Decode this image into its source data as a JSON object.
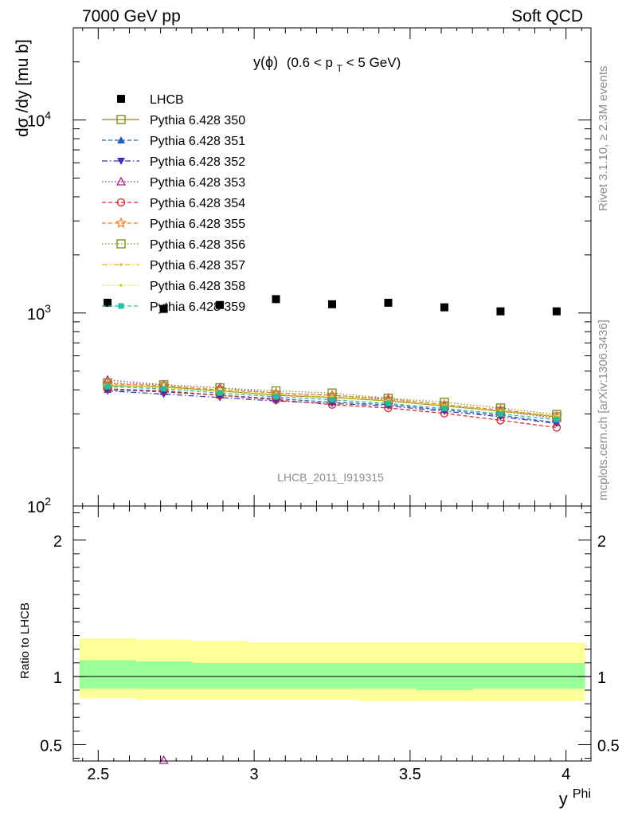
{
  "header": {
    "left": "7000 GeV pp",
    "right": "Soft QCD"
  },
  "plot_title": {
    "main": "y(ϕ)",
    "range_start": "(0.6 < p",
    "range_sub": "T",
    "range_end": " < 5 GeV)"
  },
  "side_labels": {
    "rivet": "Rivet 3.1.10, ≥ 2.3M events",
    "mcplots": "mcplots.cern.ch [arXiv:1306.3436]"
  },
  "analysis_label": "LHCB_2011_I919315",
  "ylabel_main": "dσ /dy [mu b]",
  "ylabel_ratio": "Ratio to LHCB",
  "xlabel": {
    "base": "y",
    "sup": "Phi"
  },
  "colors": {
    "data": "#000000",
    "band_inner": "#99ff99",
    "band_outer": "#ffff99"
  },
  "chart_data": [
    {
      "type": "scatter",
      "panel": "main",
      "scale": "log",
      "ylim": [
        100,
        30000
      ],
      "xlim": [
        2.42,
        4.08
      ],
      "x": [
        2.53,
        2.71,
        2.89,
        3.07,
        3.25,
        3.43,
        3.61,
        3.79,
        3.97
      ],
      "yticks": [
        {
          "v": 100,
          "t": "10",
          "e": "2"
        },
        {
          "v": 1000,
          "t": "10",
          "e": "3"
        },
        {
          "v": 10000,
          "t": "10",
          "e": "4"
        }
      ],
      "xticks": [
        "2.5",
        "3",
        "3.5",
        "4"
      ],
      "series": [
        {
          "name": "LHCB",
          "color": "#000000",
          "marker": "filled-square",
          "line": "none",
          "values": [
            1130,
            1050,
            1100,
            1180,
            1110,
            1130,
            1070,
            1020,
            1020
          ]
        },
        {
          "name": "Pythia 6.428 350",
          "color": "#8b8b1f",
          "marker": "open-square",
          "line": "solid",
          "values": [
            420,
            415,
            395,
            375,
            365,
            350,
            330,
            310,
            290
          ]
        },
        {
          "name": "Pythia 6.428 351",
          "color": "#1f5fbf",
          "marker": "filled-triangle-up",
          "line": "dashed",
          "values": [
            400,
            390,
            375,
            360,
            345,
            335,
            315,
            295,
            270
          ]
        },
        {
          "name": "Pythia 6.428 352",
          "color": "#3f2fbf",
          "marker": "filled-triangle-down",
          "line": "dashdot",
          "values": [
            395,
            380,
            365,
            350,
            340,
            330,
            310,
            290,
            268
          ]
        },
        {
          "name": "Pythia 6.428 353",
          "color": "#b0208f",
          "marker": "open-triangle-up",
          "line": "dotted",
          "values": [
            450,
            425,
            410,
            385,
            375,
            355,
            330,
            310,
            285
          ]
        },
        {
          "name": "Pythia 6.428 354",
          "color": "#e0201f",
          "marker": "open-circle",
          "line": "dashed",
          "values": [
            405,
            395,
            375,
            355,
            335,
            322,
            302,
            278,
            255
          ]
        },
        {
          "name": "Pythia 6.428 355",
          "color": "#f07f1f",
          "marker": "open-star",
          "line": "dashed",
          "values": [
            430,
            420,
            400,
            385,
            375,
            360,
            335,
            315,
            292
          ]
        },
        {
          "name": "Pythia 6.428 356",
          "color": "#7f8f1f",
          "marker": "open-square",
          "line": "dotted",
          "values": [
            435,
            425,
            410,
            395,
            385,
            362,
            345,
            322,
            298
          ]
        },
        {
          "name": "Pythia 6.428 357",
          "color": "#dfbf1f",
          "marker": "small-dot",
          "line": "dashdot",
          "values": [
            425,
            412,
            395,
            378,
            368,
            352,
            332,
            312,
            292
          ]
        },
        {
          "name": "Pythia 6.428 358",
          "color": "#c8d81f",
          "marker": "small-dot",
          "line": "dotted",
          "values": [
            422,
            410,
            392,
            376,
            366,
            350,
            330,
            310,
            290
          ]
        },
        {
          "name": "Pythia 6.428 359",
          "color": "#1fbf9f",
          "marker": "filled-square-small",
          "line": "dashed",
          "values": [
            415,
            405,
            385,
            368,
            355,
            340,
            320,
            300,
            280
          ]
        }
      ]
    },
    {
      "type": "area",
      "panel": "ratio",
      "ylim": [
        0.38,
        2.25
      ],
      "yticks": [
        "0.5",
        "1",
        "2"
      ],
      "x_edges": [
        2.44,
        2.62,
        2.8,
        2.98,
        3.16,
        3.34,
        3.52,
        3.7,
        3.88,
        4.06
      ],
      "band_outer": [
        [
          0.84,
          1.28
        ],
        [
          0.83,
          1.27
        ],
        [
          0.83,
          1.26
        ],
        [
          0.83,
          1.25
        ],
        [
          0.83,
          1.25
        ],
        [
          0.82,
          1.25
        ],
        [
          0.82,
          1.25
        ],
        [
          0.82,
          1.25
        ],
        [
          0.82,
          1.25
        ]
      ],
      "band_inner": [
        [
          0.91,
          1.12
        ],
        [
          0.91,
          1.11
        ],
        [
          0.91,
          1.1
        ],
        [
          0.91,
          1.1
        ],
        [
          0.91,
          1.1
        ],
        [
          0.91,
          1.1
        ],
        [
          0.9,
          1.1
        ],
        [
          0.91,
          1.1
        ],
        [
          0.91,
          1.1
        ]
      ],
      "reference_line": 1
    }
  ]
}
